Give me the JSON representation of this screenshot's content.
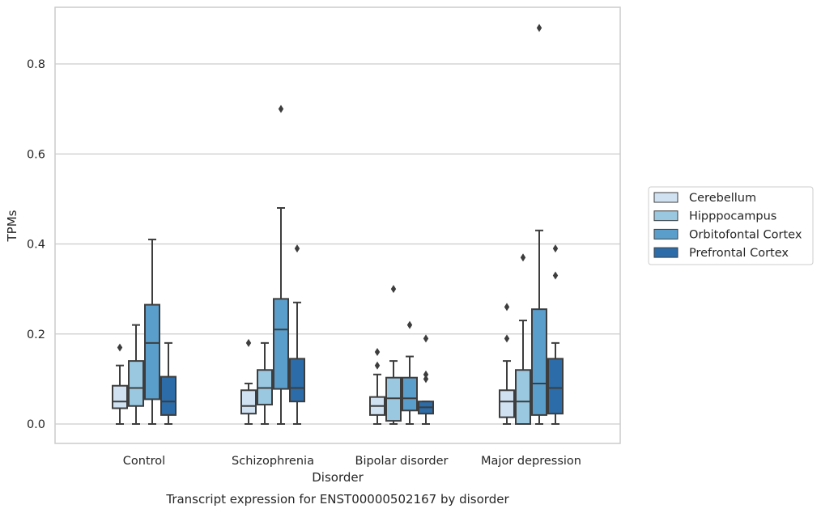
{
  "chart_data": {
    "type": "box",
    "xlabel": "Disorder",
    "ylabel": "TPMs",
    "caption": "Transcript expression for ENST00000502167 by disorder",
    "ylim": [
      -0.042,
      0.93
    ],
    "yticks": [
      0.0,
      0.2,
      0.4,
      0.6,
      0.8
    ],
    "ytick_labels": [
      "0.0",
      "0.2",
      "0.4",
      "0.6",
      "0.8"
    ],
    "grid": "horizontal",
    "legend_position": "right",
    "categories": [
      "Control",
      "Schizophrenia",
      "Bipolar disorder",
      "Major depression"
    ],
    "series": [
      {
        "name": "Cerebellum",
        "color": "#d0e1f2",
        "boxes": [
          {
            "min": 0.0,
            "q1": 0.035,
            "median": 0.05,
            "q3": 0.085,
            "max": 0.13,
            "outliers": [
              0.17
            ]
          },
          {
            "min": 0.0,
            "q1": 0.023,
            "median": 0.04,
            "q3": 0.075,
            "max": 0.09,
            "outliers": [
              0.18
            ]
          },
          {
            "min": 0.0,
            "q1": 0.02,
            "median": 0.04,
            "q3": 0.06,
            "max": 0.11,
            "outliers": [
              0.13,
              0.16
            ]
          },
          {
            "min": 0.0,
            "q1": 0.015,
            "median": 0.05,
            "q3": 0.075,
            "max": 0.14,
            "outliers": [
              0.19,
              0.26
            ]
          }
        ]
      },
      {
        "name": "Hipppocampus",
        "color": "#9ac8e0",
        "boxes": [
          {
            "min": 0.0,
            "q1": 0.04,
            "median": 0.08,
            "q3": 0.14,
            "max": 0.22,
            "outliers": []
          },
          {
            "min": 0.0,
            "q1": 0.043,
            "median": 0.08,
            "q3": 0.12,
            "max": 0.18,
            "outliers": []
          },
          {
            "min": 0.0,
            "q1": 0.007,
            "median": 0.057,
            "q3": 0.103,
            "max": 0.14,
            "outliers": [
              0.3
            ]
          },
          {
            "min": 0.0,
            "q1": 0.0,
            "median": 0.05,
            "q3": 0.12,
            "max": 0.23,
            "outliers": [
              0.37
            ]
          }
        ]
      },
      {
        "name": "Orbitofontal Cortex",
        "color": "#5a9ecc",
        "boxes": [
          {
            "min": 0.0,
            "q1": 0.055,
            "median": 0.18,
            "q3": 0.265,
            "max": 0.41,
            "outliers": []
          },
          {
            "min": 0.0,
            "q1": 0.078,
            "median": 0.21,
            "q3": 0.278,
            "max": 0.48,
            "outliers": [
              0.7
            ]
          },
          {
            "min": 0.0,
            "q1": 0.03,
            "median": 0.057,
            "q3": 0.103,
            "max": 0.15,
            "outliers": [
              0.22
            ]
          },
          {
            "min": 0.0,
            "q1": 0.02,
            "median": 0.09,
            "q3": 0.255,
            "max": 0.43,
            "outliers": [
              0.88
            ]
          }
        ]
      },
      {
        "name": "Prefrontal Cortex",
        "color": "#2c6ca8",
        "boxes": [
          {
            "min": 0.0,
            "q1": 0.02,
            "median": 0.05,
            "q3": 0.105,
            "max": 0.18,
            "outliers": []
          },
          {
            "min": 0.0,
            "q1": 0.05,
            "median": 0.08,
            "q3": 0.145,
            "max": 0.27,
            "outliers": [
              0.39
            ]
          },
          {
            "min": 0.0,
            "q1": 0.023,
            "median": 0.037,
            "q3": 0.05,
            "max": 0.05,
            "outliers": [
              0.1,
              0.11,
              0.19
            ]
          },
          {
            "min": 0.0,
            "q1": 0.023,
            "median": 0.08,
            "q3": 0.145,
            "max": 0.18,
            "outliers": [
              0.33,
              0.39
            ]
          }
        ]
      }
    ]
  }
}
